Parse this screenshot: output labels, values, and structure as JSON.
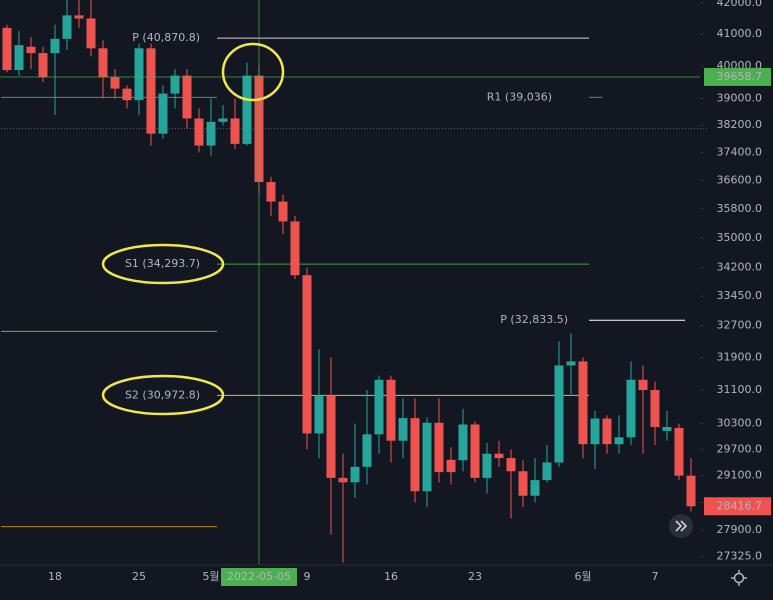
{
  "chart_data": {
    "type": "candlestick",
    "log_scale": true,
    "categories": [
      null,
      null,
      null,
      null,
      "18",
      null,
      null,
      null,
      null,
      null,
      null,
      "25",
      null,
      null,
      null,
      null,
      null,
      "5월",
      null,
      null,
      null,
      "2022-05-05",
      null,
      null,
      null,
      "9",
      null,
      null,
      null,
      null,
      null,
      null,
      "16",
      null,
      null,
      null,
      null,
      null,
      null,
      "23",
      null,
      null,
      null,
      null,
      null,
      null,
      null,
      null,
      "6월",
      null,
      null,
      null,
      null,
      null,
      "7",
      null,
      null,
      null
    ],
    "highlight_category": 21,
    "open": [
      41200,
      39870,
      40600,
      40400,
      40400,
      40850,
      41600,
      41500,
      40550,
      39650,
      39300,
      38950,
      40550,
      37950,
      39150,
      39700,
      38400,
      37600,
      38300,
      38400,
      37650,
      39700,
      36550,
      36000,
      35450,
      34000,
      30070,
      30970,
      29050,
      28950,
      29300,
      30050,
      31350,
      29900,
      30430,
      28750,
      30320,
      29460,
      29450,
      30280,
      29050,
      29600,
      29500,
      29200,
      28650,
      29000,
      29400,
      31700,
      31800,
      29820,
      30420,
      29820,
      29980,
      31350,
      31100,
      30130,
      30200,
      29100
    ],
    "high": [
      41300,
      41100,
      40900,
      40600,
      41300,
      42100,
      42100,
      42100,
      40800,
      39900,
      39400,
      40700,
      40700,
      39400,
      39900,
      39900,
      38700,
      39000,
      38800,
      39000,
      40100,
      40000,
      36700,
      36200,
      35600,
      34200,
      32100,
      31900,
      29600,
      30300,
      31100,
      31450,
      31450,
      30900,
      30900,
      30450,
      30900,
      29750,
      30650,
      30350,
      29850,
      29900,
      29700,
      29450,
      29500,
      29800,
      32300,
      32500,
      31900,
      30600,
      30500,
      30500,
      31800,
      31700,
      31300,
      30600,
      30300,
      29500
    ],
    "low": [
      39800,
      39700,
      39900,
      39500,
      38500,
      40500,
      41200,
      40300,
      39000,
      39000,
      38700,
      38500,
      37600,
      37800,
      38700,
      38100,
      37400,
      37300,
      38200,
      37500,
      37600,
      36200,
      35600,
      35100,
      33900,
      29700,
      29500,
      27800,
      27200,
      28600,
      28900,
      29600,
      29400,
      29500,
      28500,
      28400,
      28950,
      28900,
      29200,
      28950,
      28700,
      29300,
      28150,
      28400,
      28500,
      28950,
      29300,
      31000,
      29500,
      29250,
      29600,
      29600,
      29800,
      29600,
      29800,
      29900,
      29000,
      28300
    ],
    "close": [
      39870,
      40650,
      40400,
      39650,
      40850,
      41600,
      41500,
      40550,
      39650,
      39300,
      38950,
      40550,
      37950,
      39150,
      39700,
      38400,
      37600,
      38300,
      38400,
      37650,
      39700,
      36550,
      36000,
      35450,
      34000,
      30070,
      30970,
      29050,
      28950,
      29300,
      30050,
      31350,
      29900,
      30430,
      28750,
      30320,
      29180,
      29180,
      30280,
      29050,
      29600,
      29500,
      29200,
      28650,
      29000,
      29400,
      31700,
      31800,
      29820,
      30420,
      29820,
      29980,
      31350,
      31100,
      30220,
      30220,
      29100,
      28416.7
    ],
    "up_color": "#26a69a",
    "down_color": "#ef5350",
    "ylim": [
      27150,
      42100
    ],
    "yticks": [
      {
        "value": 42000,
        "label": "42000.0"
      },
      {
        "value": 41000,
        "label": "41000.0"
      },
      {
        "value": 40000,
        "label": "40000.0"
      },
      {
        "value": 39000,
        "label": "39000.0"
      },
      {
        "value": 38200,
        "label": "38200.0"
      },
      {
        "value": 37400,
        "label": "37400.0"
      },
      {
        "value": 36600,
        "label": "36600.0"
      },
      {
        "value": 35800,
        "label": "35800.0"
      },
      {
        "value": 35000,
        "label": "35000.0"
      },
      {
        "value": 34200,
        "label": "34200.0"
      },
      {
        "value": 33450,
        "label": "33450.0"
      },
      {
        "value": 32700,
        "label": "32700.0"
      },
      {
        "value": 31900,
        "label": "31900.0"
      },
      {
        "value": 31100,
        "label": "31100.0"
      },
      {
        "value": 30300,
        "label": "30300.0"
      },
      {
        "value": 29700,
        "label": "29700.0"
      },
      {
        "value": 29100,
        "label": "29100.0"
      },
      {
        "value": 28500,
        "label": "28500.0"
      },
      {
        "value": 27900,
        "label": "27900.0"
      },
      {
        "value": 27325,
        "label": "27325.0"
      }
    ],
    "levels": [
      {
        "label": "P (40,870.8)",
        "value": 40870.8,
        "color": "#d1d4dc"
      },
      {
        "label": "R1 (39,036)",
        "value": 39036,
        "color": "#4f9a4a"
      },
      {
        "label": "S1 (34,293.7)",
        "value": 34293.7,
        "color": "#4f9a4a"
      },
      {
        "label": "S2 (30,972.8)",
        "value": 30972.8,
        "color": "#c9c24a"
      },
      {
        "label": "P (32,833.5)",
        "value": 32833.5,
        "color": "#ffffff"
      },
      {
        "value": 32550,
        "color": "#a09a2a"
      },
      {
        "value": 27970,
        "color": "#b58a20"
      },
      {
        "value": 38100,
        "color": "#5d606b"
      }
    ],
    "crosshair_y": 39658.7,
    "crosshair_color": "#4caf50"
  }
}
